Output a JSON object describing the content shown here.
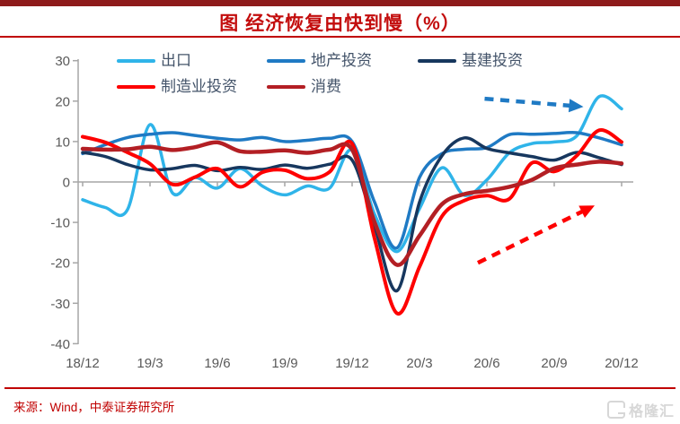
{
  "header": {
    "title": "图 经济恢复由快到慢（%）"
  },
  "source": {
    "text": "来源：Wind，中泰证券研究所"
  },
  "watermark": {
    "text": "格隆汇"
  },
  "colors": {
    "top_bar": "#8E1B1B",
    "title": "#C30D0D",
    "rule": "#C00000",
    "axis": "#A6A6A6",
    "tick_text": "#595959",
    "legend_text": "#44546A"
  },
  "chart_data": {
    "type": "line",
    "title": "图 经济恢复由快到慢（%）",
    "xlabel": "",
    "ylabel": "",
    "ylim": [
      -40,
      30
    ],
    "y_ticks": [
      30,
      20,
      10,
      0,
      -10,
      -20,
      -30,
      -40
    ],
    "grid": false,
    "legend_position": "top",
    "x": [
      "18/12",
      "19/1",
      "19/2",
      "19/3",
      "19/4",
      "19/5",
      "19/6",
      "19/7",
      "19/8",
      "19/9",
      "19/10",
      "19/11",
      "19/12",
      "20/1",
      "20/2",
      "20/3",
      "20/4",
      "20/5",
      "20/6",
      "20/7",
      "20/8",
      "20/9",
      "20/10",
      "20/11",
      "20/12"
    ],
    "x_tick_labels": [
      "18/12",
      "19/3",
      "19/6",
      "19/9",
      "19/12",
      "20/3",
      "20/6",
      "20/9",
      "20/12"
    ],
    "series": [
      {
        "name": "出口",
        "color": "#2FB4E9",
        "width": 3.5,
        "values": [
          -4.4,
          -6.3,
          -6.8,
          14.2,
          -2.7,
          1.1,
          -1.5,
          3.3,
          -1.0,
          -3.2,
          -1.0,
          -1.5,
          7.9,
          -8.0,
          -17.2,
          -6.6,
          3.5,
          -3.3,
          0.5,
          7.2,
          9.5,
          9.9,
          11.4,
          21.1,
          18.1
        ]
      },
      {
        "name": "地产投资",
        "color": "#1F7AC4",
        "width": 3.5,
        "values": [
          7.0,
          9.2,
          11.0,
          11.8,
          12.2,
          11.5,
          10.8,
          10.4,
          11.0,
          10.0,
          10.3,
          10.8,
          10.0,
          -5.0,
          -16.3,
          1.1,
          7.0,
          8.1,
          8.5,
          11.7,
          11.8,
          12.0,
          12.2,
          10.9,
          9.2
        ]
      },
      {
        "name": "基建投资",
        "color": "#17375E",
        "width": 3.5,
        "values": [
          7.3,
          6.3,
          4.3,
          3.0,
          3.3,
          4.1,
          2.8,
          3.6,
          3.1,
          4.2,
          3.4,
          4.4,
          5.4,
          -11.0,
          -26.9,
          -5.0,
          6.5,
          10.9,
          8.3,
          7.2,
          6.3,
          5.4,
          7.3,
          6.0,
          4.3
        ]
      },
      {
        "name": "制造业投资",
        "color": "#FE0000",
        "width": 4,
        "values": [
          11.2,
          9.8,
          7.3,
          4.5,
          -0.6,
          1.2,
          3.3,
          -1.2,
          2.4,
          2.9,
          0.8,
          2.5,
          9.5,
          -14.0,
          -32.5,
          -21.0,
          -8.5,
          -4.6,
          -3.4,
          -4.2,
          4.7,
          2.6,
          6.5,
          12.8,
          9.9
        ]
      },
      {
        "name": "消费",
        "color": "#B31F24",
        "width": 4.5,
        "values": [
          8.2,
          8.0,
          8.1,
          8.7,
          7.9,
          8.6,
          9.8,
          7.6,
          7.5,
          7.8,
          7.2,
          8.0,
          8.0,
          -10.0,
          -20.5,
          -13.3,
          -5.5,
          -3.0,
          -2.2,
          -1.2,
          0.5,
          3.4,
          4.3,
          5.0,
          4.6
        ]
      }
    ],
    "annotations": [
      {
        "name": "exports-trend-arrow",
        "style": "dashed-arrow",
        "color": "#1F7AC4",
        "from": {
          "month_index": 17.9,
          "value": 20.6
        },
        "to": {
          "month_index": 22.3,
          "value": 18.6
        }
      },
      {
        "name": "recovery-trend-arrow",
        "style": "dashed-arrow",
        "color": "#FE0000",
        "from": {
          "month_index": 17.6,
          "value": -20.0
        },
        "to": {
          "month_index": 22.8,
          "value": -5.8
        }
      }
    ]
  }
}
